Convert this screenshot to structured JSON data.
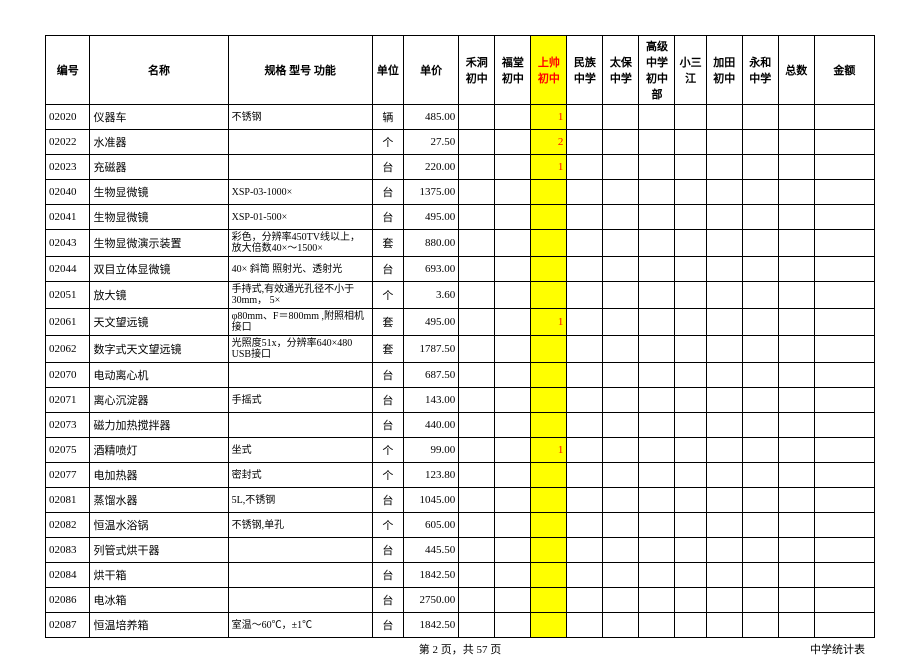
{
  "headers": {
    "code": "编号",
    "name": "名称",
    "spec": "规格 型号 功能",
    "unit": "单位",
    "price": "单价",
    "schools": [
      "禾洞初中",
      "福堂初中",
      "上帅初中",
      "民族中学",
      "太保中学",
      "高级中学初中部",
      "小三江",
      "加田初中",
      "永和中学"
    ],
    "total": "总数",
    "amount": "金额"
  },
  "highlight_school_index": 2,
  "rows": [
    {
      "code": "02020",
      "name": "仪器车",
      "spec": "不锈钢",
      "unit": "辆",
      "price": "485.00",
      "hl": "1"
    },
    {
      "code": "02022",
      "name": "水准器",
      "spec": "",
      "unit": "个",
      "price": "27.50",
      "hl": "2"
    },
    {
      "code": "02023",
      "name": "充磁器",
      "spec": "",
      "unit": "台",
      "price": "220.00",
      "hl": "1"
    },
    {
      "code": "02040",
      "name": "生物显微镜",
      "spec": "XSP-03-1000×",
      "unit": "台",
      "price": "1375.00",
      "hl": ""
    },
    {
      "code": "02041",
      "name": "生物显微镜",
      "spec": "XSP-01-500×",
      "unit": "台",
      "price": "495.00",
      "hl": ""
    },
    {
      "code": "02043",
      "name": "生物显微演示装置",
      "spec": "彩色，分辨率450TV线以上，放大倍数40×～1500×",
      "unit": "套",
      "price": "880.00",
      "hl": ""
    },
    {
      "code": "02044",
      "name": "双目立体显微镜",
      "spec": "40× 斜筒 照射光、透射光",
      "unit": "台",
      "price": "693.00",
      "hl": ""
    },
    {
      "code": "02051",
      "name": "放大镜",
      "spec": "手持式,有效通光孔径不小于30mm， 5×",
      "unit": "个",
      "price": "3.60",
      "hl": ""
    },
    {
      "code": "02061",
      "name": "天文望远镜",
      "spec": "φ80mm、F＝800mm ,附照相机接口",
      "unit": "套",
      "price": "495.00",
      "hl": "1"
    },
    {
      "code": "02062",
      "name": "数字式天文望远镜",
      "spec": "光照度51x，分辨率640×480　　USB接口",
      "unit": "套",
      "price": "1787.50",
      "hl": ""
    },
    {
      "code": "02070",
      "name": "电动离心机",
      "spec": "",
      "unit": "台",
      "price": "687.50",
      "hl": ""
    },
    {
      "code": "02071",
      "name": "离心沉淀器",
      "spec": "手摇式",
      "unit": "台",
      "price": "143.00",
      "hl": ""
    },
    {
      "code": "02073",
      "name": "磁力加热搅拌器",
      "spec": "",
      "unit": "台",
      "price": "440.00",
      "hl": ""
    },
    {
      "code": "02075",
      "name": "酒精喷灯",
      "spec": "坐式",
      "unit": "个",
      "price": "99.00",
      "hl": "1"
    },
    {
      "code": "02077",
      "name": "电加热器",
      "spec": "密封式",
      "unit": "个",
      "price": "123.80",
      "hl": ""
    },
    {
      "code": "02081",
      "name": "蒸馏水器",
      "spec": "5L,不锈钢",
      "unit": "台",
      "price": "1045.00",
      "hl": ""
    },
    {
      "code": "02082",
      "name": "恒温水浴锅",
      "spec": "不锈钢,单孔",
      "unit": "个",
      "price": "605.00",
      "hl": ""
    },
    {
      "code": "02083",
      "name": "列管式烘干器",
      "spec": "",
      "unit": "台",
      "price": "445.50",
      "hl": ""
    },
    {
      "code": "02084",
      "name": "烘干箱",
      "spec": "",
      "unit": "台",
      "price": "1842.50",
      "hl": ""
    },
    {
      "code": "02086",
      "name": "电冰箱",
      "spec": "",
      "unit": "台",
      "price": "2750.00",
      "hl": ""
    },
    {
      "code": "02087",
      "name": "恒温培养箱",
      "spec": "室温～60℃，±1℃",
      "unit": "台",
      "price": "1842.50",
      "hl": ""
    }
  ],
  "footer": {
    "page": "第 2 页，共 57 页",
    "title": "中学统计表"
  }
}
